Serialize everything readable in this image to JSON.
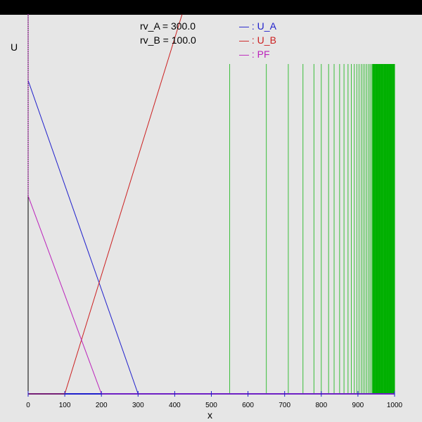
{
  "params": [
    {
      "label": "rv_A = 300.0"
    },
    {
      "label": "rv_B = 100.0"
    }
  ],
  "legend": [
    {
      "label": "— : U_A",
      "color": "#2020cc"
    },
    {
      "label": "— : U_B",
      "color": "#cc2020"
    },
    {
      "label": "— : PF",
      "color": "#bb22bb"
    }
  ],
  "axes": {
    "xlabel": "x",
    "ylabel": "U",
    "xticks": [
      "0",
      "100",
      "200",
      "300",
      "400",
      "500",
      "600",
      "700",
      "800",
      "900",
      "1000"
    ]
  },
  "chart_data": {
    "type": "line",
    "xlabel": "x",
    "ylabel": "U",
    "xlim": [
      0,
      1000
    ],
    "ylim": [
      0,
      1
    ],
    "grid": false,
    "legend_position": "top",
    "series": [
      {
        "name": "U_A",
        "color": "#2020cc",
        "x": [
          0,
          300,
          1000
        ],
        "y": [
          0.95,
          0,
          0
        ]
      },
      {
        "name": "U_B",
        "color": "#cc2020",
        "x": [
          0,
          100,
          420
        ],
        "y": [
          0,
          0,
          1.15
        ]
      },
      {
        "name": "PF",
        "color": "#bb22bb",
        "x": [
          0,
          200,
          1000
        ],
        "y": [
          0.6,
          0,
          0
        ]
      }
    ],
    "markers": {
      "color": "#00b000",
      "ylim": [
        0,
        1
      ],
      "x": [
        550,
        650,
        710,
        750,
        780,
        800,
        820,
        835,
        850,
        862,
        873,
        882,
        890,
        897,
        903,
        909,
        914,
        919,
        924,
        929,
        933,
        937,
        941,
        945,
        949,
        953,
        957,
        961,
        965,
        969,
        973,
        977,
        981,
        985,
        989,
        993,
        997
      ]
    }
  }
}
